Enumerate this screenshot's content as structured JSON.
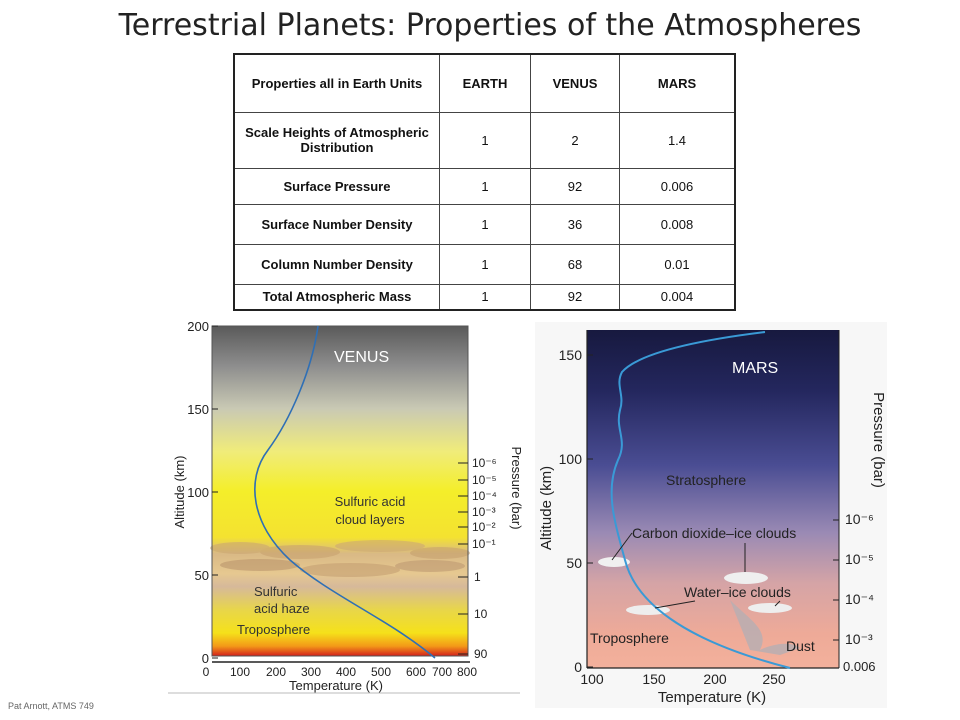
{
  "title": "Terrestrial Planets: Properties of the Atmospheres",
  "table": {
    "headers": [
      "Properties all in Earth Units",
      "EARTH",
      "VENUS",
      "MARS"
    ],
    "rows": [
      {
        "label": "Scale Heights of Atmospheric Distribution",
        "earth": "1",
        "venus": "2",
        "mars": "1.4"
      },
      {
        "label": "Surface Pressure",
        "earth": "1",
        "venus": "92",
        "mars": "0.006"
      },
      {
        "label": "Surface Number Density",
        "earth": "1",
        "venus": "36",
        "mars": "0.008"
      },
      {
        "label": "Column Number Density",
        "earth": "1",
        "venus": "68",
        "mars": "0.01"
      },
      {
        "label": "Total Atmospheric Mass",
        "earth": "1",
        "venus": "92",
        "mars": "0.004"
      }
    ]
  },
  "venus": {
    "label": "VENUS",
    "ylabel": "Altitude (km)",
    "xlabel": "Temperature (K)",
    "y2label": "Pressure (bar)",
    "yticks": [
      "200",
      "150",
      "100",
      "50",
      "0"
    ],
    "xticks": [
      "0",
      "100",
      "200",
      "300",
      "400",
      "500",
      "600",
      "700",
      "800"
    ],
    "pressure_ticks": [
      "10⁻⁶",
      "10⁻⁵",
      "10⁻⁴",
      "10⁻³",
      "10⁻²",
      "10⁻¹",
      "1",
      "10",
      "90"
    ],
    "layers": [
      "Sulfuric acid",
      "cloud layers",
      "Sulfuric",
      "acid haze",
      "Troposphere"
    ]
  },
  "mars": {
    "label": "MARS",
    "ylabel": "Altitude (km)",
    "xlabel": "Temperature (K)",
    "y2label": "Pressure (bar)",
    "yticks": [
      "150",
      "100",
      "50",
      "0"
    ],
    "xticks": [
      "100",
      "150",
      "200",
      "250"
    ],
    "pressure_ticks": [
      "10⁻⁶",
      "10⁻⁵",
      "10⁻⁴",
      "10⁻³",
      "0.006"
    ],
    "layers": [
      "Stratosphere",
      "Carbon dioxide–ice clouds",
      "Water–ice clouds",
      "Troposphere",
      "Dust"
    ]
  },
  "footer": "Pat Arnott,  ATMS 749"
}
